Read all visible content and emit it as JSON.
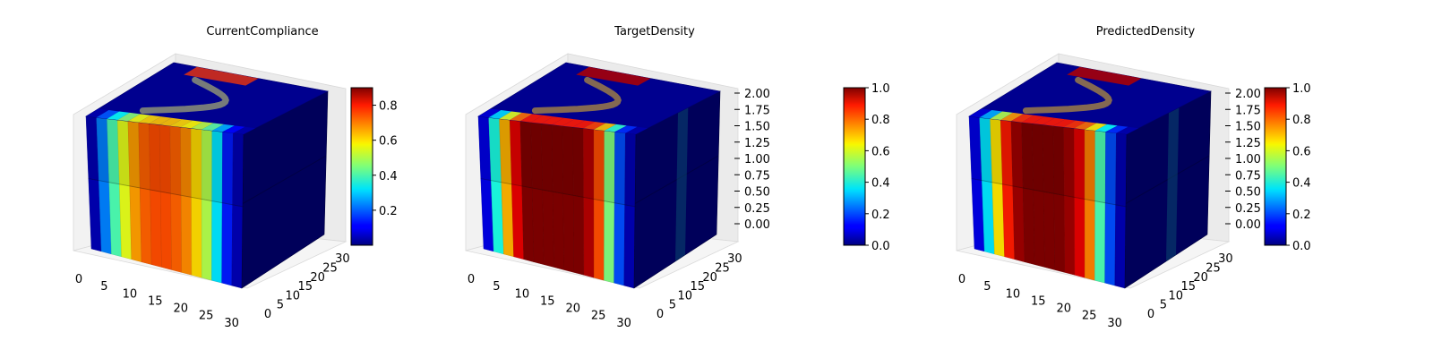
{
  "chart_data": [
    {
      "type": "3d-voxel",
      "title": "CurrentCompliance",
      "x_ticks": [
        0,
        5,
        10,
        15,
        20,
        25,
        30
      ],
      "y_ticks": [
        0,
        5,
        10,
        15,
        20,
        25,
        30
      ],
      "z_ticks": [],
      "xlim": [
        0,
        32
      ],
      "ylim": [
        0,
        32
      ],
      "colorbar": {
        "min": 0.0,
        "max": 0.9,
        "ticks": [
          "0.2",
          "0.4",
          "0.6",
          "0.8"
        ]
      },
      "colormap": "jet",
      "front_profile": [
        {
          "x": 0,
          "v": 0.05
        },
        {
          "x": 1,
          "v": 0.25
        },
        {
          "x": 2,
          "v": 0.45
        },
        {
          "x": 3,
          "v": 0.6
        },
        {
          "x": 4,
          "v": 0.72
        },
        {
          "x": 5,
          "v": 0.78
        },
        {
          "x": 6,
          "v": 0.8
        },
        {
          "x": 7,
          "v": 0.8
        },
        {
          "x": 8,
          "v": 0.78
        },
        {
          "x": 9,
          "v": 0.74
        },
        {
          "x": 10,
          "v": 0.66
        },
        {
          "x": 11,
          "v": 0.55
        },
        {
          "x": 12,
          "v": 0.35
        },
        {
          "x": 13,
          "v": 0.15
        },
        {
          "x": 14,
          "v": 0.05
        }
      ]
    },
    {
      "type": "3d-voxel",
      "title": "TargetDensity",
      "x_ticks": [
        0,
        5,
        10,
        15,
        20,
        25,
        30
      ],
      "y_ticks": [
        0,
        5,
        10,
        15,
        20,
        25,
        30
      ],
      "z_ticks": [
        "0.00",
        "0.25",
        "0.50",
        "0.75",
        "1.00",
        "1.25",
        "1.50",
        "1.75",
        "2.00"
      ],
      "xlim": [
        0,
        32
      ],
      "ylim": [
        0,
        32
      ],
      "zlim": [
        0,
        2
      ],
      "colorbar": {
        "min": 0.0,
        "max": 1.0,
        "ticks": [
          "0.0",
          "0.2",
          "0.4",
          "0.6",
          "0.8",
          "1.0"
        ]
      },
      "colormap": "jet",
      "front_profile": [
        {
          "x": 0,
          "v": 0.1
        },
        {
          "x": 1,
          "v": 0.4
        },
        {
          "x": 2,
          "v": 0.7
        },
        {
          "x": 3,
          "v": 0.9
        },
        {
          "x": 4,
          "v": 1.0
        },
        {
          "x": 5,
          "v": 1.0
        },
        {
          "x": 6,
          "v": 1.0
        },
        {
          "x": 7,
          "v": 1.0
        },
        {
          "x": 8,
          "v": 1.0
        },
        {
          "x": 9,
          "v": 1.0
        },
        {
          "x": 10,
          "v": 0.95
        },
        {
          "x": 11,
          "v": 0.8
        },
        {
          "x": 12,
          "v": 0.5
        },
        {
          "x": 13,
          "v": 0.2
        },
        {
          "x": 14,
          "v": 0.05
        }
      ]
    },
    {
      "type": "3d-voxel",
      "title": "PredictedDensity",
      "x_ticks": [
        0,
        5,
        10,
        15,
        20,
        25,
        30
      ],
      "y_ticks": [
        0,
        5,
        10,
        15,
        20,
        25,
        30
      ],
      "z_ticks": [
        "0.00",
        "0.25",
        "0.50",
        "0.75",
        "1.00",
        "1.25",
        "1.50",
        "1.75",
        "2.00"
      ],
      "xlim": [
        0,
        32
      ],
      "ylim": [
        0,
        32
      ],
      "zlim": [
        0,
        2
      ],
      "colorbar": {
        "min": 0.0,
        "max": 1.0,
        "ticks": [
          "0.0",
          "0.2",
          "0.4",
          "0.6",
          "0.8",
          "1.0"
        ]
      },
      "colormap": "jet",
      "front_profile": [
        {
          "x": 0,
          "v": 0.1
        },
        {
          "x": 1,
          "v": 0.35
        },
        {
          "x": 2,
          "v": 0.65
        },
        {
          "x": 3,
          "v": 0.85
        },
        {
          "x": 4,
          "v": 0.97
        },
        {
          "x": 5,
          "v": 1.0
        },
        {
          "x": 6,
          "v": 1.0
        },
        {
          "x": 7,
          "v": 1.0
        },
        {
          "x": 8,
          "v": 1.0
        },
        {
          "x": 9,
          "v": 0.97
        },
        {
          "x": 10,
          "v": 0.9
        },
        {
          "x": 11,
          "v": 0.75
        },
        {
          "x": 12,
          "v": 0.45
        },
        {
          "x": 13,
          "v": 0.2
        },
        {
          "x": 14,
          "v": 0.05
        }
      ]
    }
  ]
}
